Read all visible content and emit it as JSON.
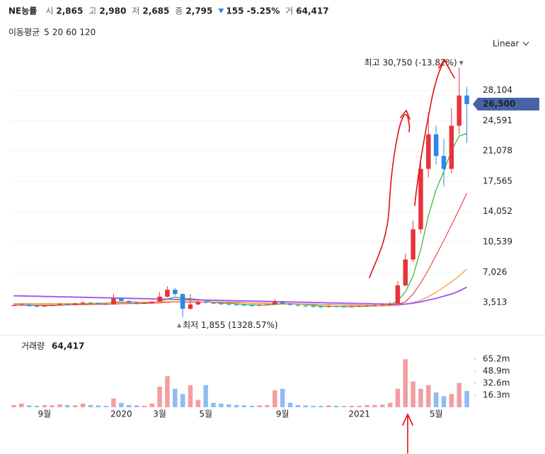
{
  "header": {
    "name": "NE능률",
    "fields": [
      {
        "label": "시",
        "value": "2,865"
      },
      {
        "label": "고",
        "value": "2,980"
      },
      {
        "label": "저",
        "value": "2,685"
      },
      {
        "label": "종",
        "value": "2,795"
      }
    ],
    "change": "155 -5.25%",
    "volume_label": "거",
    "volume": "64,417"
  },
  "controls": {
    "scale": "Linear"
  },
  "chart_data": [
    {
      "type": "candlestick",
      "legend_title": "이동평균",
      "up_color": "#e8333b",
      "down_color": "#2f86e8",
      "open": [
        3150,
        3200,
        3300,
        3100,
        3050,
        3150,
        3200,
        3350,
        3250,
        3400,
        3500,
        3450,
        3350,
        3300,
        4000,
        3700,
        3500,
        3400,
        3450,
        3600,
        4200,
        5000,
        4500,
        2800,
        3300,
        3600,
        3500,
        3400,
        3350,
        3300,
        3250,
        3200,
        3150,
        3250,
        3300,
        3600,
        3400,
        3250,
        3150,
        3100,
        3050,
        3000,
        3100,
        3050,
        3000,
        3050,
        3100,
        3150,
        3200,
        3250,
        3400,
        5500,
        8500,
        12000,
        19000,
        23000,
        20500,
        19000,
        24000,
        27500
      ],
      "high": [
        3300,
        3400,
        3350,
        3200,
        3250,
        3300,
        3450,
        3400,
        3500,
        3650,
        3600,
        3500,
        3450,
        4500,
        4100,
        3750,
        3550,
        3550,
        3700,
        4700,
        5400,
        5200,
        4600,
        4500,
        3800,
        3700,
        3600,
        3500,
        3450,
        3400,
        3350,
        3300,
        3350,
        3400,
        3900,
        3700,
        3450,
        3300,
        3250,
        3200,
        3150,
        3200,
        3150,
        3150,
        3150,
        3200,
        3250,
        3300,
        3400,
        3600,
        6000,
        9200,
        13000,
        20500,
        25500,
        24000,
        22500,
        26000,
        30750,
        28500
      ],
      "low": [
        3100,
        3150,
        3050,
        2950,
        3000,
        3100,
        3150,
        3200,
        3200,
        3350,
        3350,
        3300,
        3200,
        3250,
        3600,
        3400,
        3300,
        3350,
        3400,
        3550,
        4100,
        4300,
        1855,
        2700,
        3200,
        3400,
        3300,
        3250,
        3200,
        3150,
        3100,
        3050,
        3100,
        3200,
        3250,
        3300,
        3150,
        3050,
        3000,
        2950,
        2900,
        2950,
        2950,
        2900,
        2950,
        3000,
        3050,
        3100,
        3150,
        3200,
        3350,
        5400,
        8200,
        11500,
        18000,
        19500,
        17000,
        18500,
        23000,
        22000
      ],
      "close": [
        3200,
        3300,
        3100,
        3050,
        3150,
        3200,
        3350,
        3250,
        3400,
        3500,
        3450,
        3350,
        3300,
        4000,
        3700,
        3500,
        3400,
        3450,
        3600,
        4200,
        5000,
        4500,
        2800,
        3300,
        3600,
        3500,
        3400,
        3350,
        3300,
        3250,
        3200,
        3150,
        3250,
        3300,
        3600,
        3400,
        3250,
        3150,
        3100,
        3050,
        3000,
        3100,
        3050,
        3000,
        3050,
        3100,
        3150,
        3200,
        3250,
        3400,
        5500,
        8500,
        12000,
        19000,
        23000,
        20500,
        19000,
        24000,
        27500,
        26500
      ],
      "series": [
        {
          "name": "5",
          "color": "#2fb52f",
          "values": [
            3200,
            3220,
            3200,
            3180,
            3160,
            3170,
            3210,
            3240,
            3290,
            3340,
            3390,
            3400,
            3400,
            3580,
            3560,
            3570,
            3580,
            3470,
            3530,
            3670,
            3940,
            4150,
            4020,
            3960,
            3880,
            3740,
            3520,
            3430,
            3430,
            3370,
            3300,
            3250,
            3230,
            3230,
            3300,
            3340,
            3360,
            3340,
            3270,
            3190,
            3110,
            3080,
            3060,
            3040,
            3040,
            3060,
            3090,
            3120,
            3150,
            3220,
            3700,
            4770,
            6570,
            9680,
            13600,
            16600,
            18700,
            21100,
            22800,
            23100
          ]
        },
        {
          "name": "20",
          "color": "#ef4b4b",
          "values": [
            3250,
            3250,
            3240,
            3230,
            3230,
            3230,
            3240,
            3250,
            3260,
            3270,
            3290,
            3300,
            3310,
            3350,
            3370,
            3390,
            3400,
            3410,
            3430,
            3470,
            3540,
            3590,
            3560,
            3550,
            3560,
            3570,
            3570,
            3570,
            3560,
            3540,
            3500,
            3440,
            3430,
            3400,
            3390,
            3380,
            3370,
            3360,
            3340,
            3320,
            3290,
            3280,
            3260,
            3240,
            3230,
            3210,
            3190,
            3170,
            3150,
            3160,
            3300,
            3600,
            4500,
            5800,
            7300,
            9000,
            10700,
            12500,
            14300,
            16200
          ]
        },
        {
          "name": "60",
          "color": "#f5963c",
          "values": [
            3400,
            3400,
            3400,
            3400,
            3400,
            3400,
            3400,
            3400,
            3400,
            3400,
            3420,
            3440,
            3460,
            3480,
            3500,
            3520,
            3540,
            3560,
            3580,
            3600,
            3610,
            3620,
            3620,
            3610,
            3600,
            3580,
            3560,
            3540,
            3520,
            3500,
            3480,
            3460,
            3440,
            3420,
            3400,
            3380,
            3360,
            3340,
            3320,
            3300,
            3280,
            3260,
            3240,
            3220,
            3200,
            3190,
            3180,
            3170,
            3160,
            3160,
            3200,
            3300,
            3500,
            3800,
            4200,
            4700,
            5300,
            5900,
            6600,
            7400
          ]
        },
        {
          "name": "120",
          "color": "#a45ef0",
          "values": [
            4300,
            4280,
            4260,
            4240,
            4220,
            4200,
            4180,
            4160,
            4140,
            4120,
            4100,
            4080,
            4060,
            4040,
            4020,
            4000,
            3980,
            3960,
            3940,
            3920,
            3900,
            3880,
            3860,
            3840,
            3820,
            3800,
            3780,
            3760,
            3740,
            3720,
            3700,
            3680,
            3660,
            3640,
            3620,
            3600,
            3580,
            3560,
            3540,
            3520,
            3500,
            3480,
            3460,
            3440,
            3420,
            3400,
            3380,
            3360,
            3340,
            3320,
            3300,
            3350,
            3450,
            3600,
            3800,
            4000,
            4250,
            4500,
            4850,
            5300
          ]
        }
      ],
      "ylim": [
        0,
        32000
      ],
      "yticks": [
        {
          "value": 3513,
          "label": "3,513"
        },
        {
          "value": 7026,
          "label": "7,026"
        },
        {
          "value": 10539,
          "label": "10,539"
        },
        {
          "value": 14052,
          "label": "14,052"
        },
        {
          "value": 17565,
          "label": "17,565"
        },
        {
          "value": 21078,
          "label": "21,078"
        },
        {
          "value": 24591,
          "label": "24,591"
        },
        {
          "value": 28104,
          "label": "28,104"
        }
      ],
      "grid": true,
      "last_price": {
        "value": 26500,
        "label": "26,500"
      },
      "annotations": [
        {
          "text": "최고 30,750 (-13.82%)"
        },
        {
          "text": "최저 1,855 (1328.57%)"
        }
      ]
    },
    {
      "type": "bar",
      "title": "거래량",
      "last_label": "64,417",
      "up_color": "#f19ea2",
      "down_color": "#8dbdf3",
      "categories": [
        null,
        null,
        null,
        null,
        "9월",
        null,
        null,
        null,
        null,
        null,
        null,
        null,
        null,
        null,
        "2020",
        null,
        null,
        null,
        null,
        "3월",
        null,
        null,
        null,
        null,
        null,
        "5월",
        null,
        null,
        null,
        null,
        null,
        null,
        null,
        null,
        null,
        "9월",
        null,
        null,
        null,
        null,
        null,
        null,
        null,
        null,
        null,
        "2021",
        null,
        null,
        null,
        null,
        null,
        null,
        null,
        null,
        null,
        "5월",
        null,
        null,
        null,
        null
      ],
      "values": [
        3000000,
        5000000,
        2500000,
        2000000,
        3000000,
        2500000,
        4000000,
        3000000,
        2500000,
        5000000,
        3000000,
        2500000,
        2000000,
        12000000,
        6000000,
        3000000,
        2500000,
        2000000,
        5000000,
        28000000,
        42000000,
        25000000,
        18000000,
        30000000,
        10000000,
        30000000,
        6000000,
        5000000,
        4000000,
        3000000,
        2500000,
        2000000,
        2500000,
        3000000,
        23000000,
        25000000,
        6000000,
        3000000,
        2500000,
        2000000,
        2000000,
        2500000,
        2000000,
        1500000,
        2000000,
        2000000,
        3000000,
        3000000,
        3500000,
        6000000,
        25000000,
        65000000,
        35000000,
        25000000,
        30000000,
        20000000,
        15000000,
        18000000,
        33000000,
        22000000
      ],
      "ylim": [
        0,
        81500000
      ],
      "yticks": [
        {
          "value": 16300000,
          "label": "16.3m"
        },
        {
          "value": 32600000,
          "label": "32.6m"
        },
        {
          "value": 48900000,
          "label": "48.9m"
        },
        {
          "value": 65200000,
          "label": "65.2m"
        }
      ]
    }
  ]
}
